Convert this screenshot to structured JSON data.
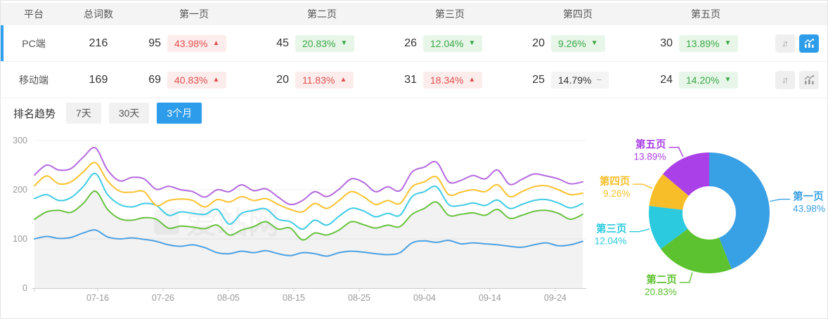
{
  "table": {
    "headers": [
      "平台",
      "总词数",
      "第一页",
      "第二页",
      "第三页",
      "第四页",
      "第五页"
    ],
    "rows": [
      {
        "platform": "PC端",
        "total": "216",
        "selected": true,
        "chart_active": true,
        "pages": [
          {
            "count": "95",
            "pct": "43.98%",
            "dir": "up",
            "tone": "red"
          },
          {
            "count": "45",
            "pct": "20.83%",
            "dir": "down",
            "tone": "green"
          },
          {
            "count": "26",
            "pct": "12.04%",
            "dir": "down",
            "tone": "green"
          },
          {
            "count": "20",
            "pct": "9.26%",
            "dir": "down",
            "tone": "green"
          },
          {
            "count": "30",
            "pct": "13.89%",
            "dir": "down",
            "tone": "green"
          }
        ]
      },
      {
        "platform": "移动端",
        "total": "169",
        "selected": false,
        "chart_active": false,
        "pages": [
          {
            "count": "69",
            "pct": "40.83%",
            "dir": "up",
            "tone": "red"
          },
          {
            "count": "20",
            "pct": "11.83%",
            "dir": "up",
            "tone": "red"
          },
          {
            "count": "31",
            "pct": "18.34%",
            "dir": "up",
            "tone": "red"
          },
          {
            "count": "25",
            "pct": "14.79%",
            "dir": "flat",
            "tone": "flat"
          },
          {
            "count": "24",
            "pct": "14.20%",
            "dir": "down",
            "tone": "green"
          }
        ]
      }
    ]
  },
  "icons": {
    "up": "▲",
    "down": "▼",
    "flat": "−",
    "sort": "↓↑"
  },
  "trend": {
    "title": "排名趋势",
    "tabs": [
      {
        "label": "7天",
        "active": false
      },
      {
        "label": "30天",
        "active": false
      },
      {
        "label": "3个月",
        "active": true
      }
    ],
    "watermark": "爱站网"
  },
  "colors": {
    "accent": "#2d9ceb",
    "row_indicator": "#2da0f0",
    "header_bg": "#f4f4f4",
    "badge_red_text": "#e34f4f",
    "badge_red_bg": "#fcedec",
    "badge_green_text": "#3aa746",
    "badge_green_bg": "#e8f6e9",
    "badge_flat_bg": "#f4f4f4",
    "badge_flat_text": "#333333",
    "axis_text": "#999999",
    "gridline": "#efefef"
  },
  "chart_data": [
    {
      "type": "line",
      "title": "排名趋势（3个月）",
      "x_tick_labels": [
        "07-16",
        "07-26",
        "08-05",
        "08-15",
        "08-25",
        "09-04",
        "09-14",
        "09-24"
      ],
      "ylim": [
        0,
        300
      ],
      "yticks": [
        0,
        100,
        200,
        300
      ],
      "grid": true,
      "legend": false,
      "series": [
        {
          "name": "blue",
          "color": "#4da1e2",
          "area": false,
          "values": [
            100,
            105,
            101,
            103,
            112,
            118,
            104,
            100,
            102,
            99,
            95,
            88,
            85,
            88,
            82,
            72,
            70,
            75,
            72,
            76,
            70,
            66,
            72,
            70,
            65,
            72,
            75,
            73,
            70,
            68,
            72,
            92,
            96,
            93,
            97,
            90,
            92,
            90,
            88,
            85,
            83,
            88,
            92,
            86,
            88,
            95
          ]
        },
        {
          "name": "green",
          "color": "#67c23f",
          "area": true,
          "values": [
            140,
            155,
            158,
            154,
            172,
            197,
            160,
            141,
            138,
            143,
            140,
            122,
            126,
            124,
            121,
            128,
            108,
            118,
            125,
            135,
            120,
            122,
            98,
            112,
            108,
            118,
            135,
            129,
            122,
            128,
            125,
            150,
            162,
            175,
            148,
            150,
            153,
            148,
            160,
            142,
            148,
            156,
            158,
            152,
            140,
            150
          ]
        },
        {
          "name": "cyan",
          "color": "#3fcbe4",
          "area": false,
          "values": [
            182,
            190,
            178,
            184,
            206,
            233,
            190,
            170,
            165,
            172,
            168,
            148,
            155,
            152,
            150,
            160,
            130,
            152,
            158,
            161,
            140,
            135,
            120,
            138,
            128,
            146,
            162,
            157,
            145,
            152,
            148,
            186,
            196,
            206,
            170,
            168,
            173,
            168,
            179,
            162,
            170,
            178,
            180,
            173,
            163,
            172
          ]
        },
        {
          "name": "yellow",
          "color": "#f9c22e",
          "area": false,
          "values": [
            208,
            228,
            212,
            216,
            236,
            255,
            218,
            197,
            195,
            196,
            168,
            178,
            181,
            178,
            165,
            180,
            175,
            186,
            178,
            182,
            170,
            160,
            155,
            172,
            162,
            178,
            196,
            186,
            170,
            178,
            172,
            206,
            216,
            226,
            190,
            195,
            200,
            196,
            210,
            186,
            196,
            206,
            208,
            200,
            190,
            193
          ]
        },
        {
          "name": "purple",
          "color": "#b46adf",
          "area": false,
          "values": [
            230,
            250,
            240,
            243,
            266,
            285,
            240,
            218,
            225,
            222,
            201,
            207,
            200,
            196,
            185,
            200,
            196,
            210,
            198,
            202,
            185,
            170,
            178,
            196,
            186,
            201,
            222,
            215,
            196,
            206,
            198,
            236,
            246,
            256,
            216,
            219,
            229,
            222,
            240,
            211,
            221,
            232,
            228,
            222,
            212,
            216
          ]
        }
      ],
      "area_fill": "rgba(0,0,0,0.05)"
    },
    {
      "type": "pie",
      "donut": true,
      "labels": [
        "第一页",
        "第二页",
        "第三页",
        "第四页",
        "第五页"
      ],
      "values": [
        43.98,
        20.83,
        12.04,
        9.26,
        13.89
      ],
      "unit": "%",
      "colors": [
        "#38a0e4",
        "#5cc22f",
        "#2bcade",
        "#f7be29",
        "#a940e8"
      ],
      "start_angle": "top",
      "direction": "clockwise",
      "label_position": "outside"
    }
  ]
}
